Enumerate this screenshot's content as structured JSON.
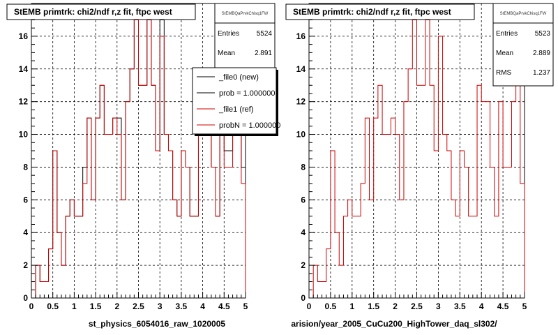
{
  "footer_text": "",
  "chart_data": [
    {
      "type": "histogram",
      "title": "StEMB primtrk: chi2/ndf r,z fit, ftpc west",
      "xlabel": "st_physics_6054016_raw_1020005",
      "ylabel": "",
      "xlim": [
        0,
        5
      ],
      "ylim": [
        0,
        18
      ],
      "x_ticks": [
        "0",
        "0.5",
        "1",
        "1.5",
        "2",
        "2.5",
        "3",
        "3.5",
        "4",
        "4.5",
        "5"
      ],
      "y_ticks": [
        "0",
        "2",
        "4",
        "6",
        "8",
        "10",
        "12",
        "14",
        "16"
      ],
      "grid": true,
      "bin_edges_start": 0,
      "bin_width": 0.1,
      "series": [
        {
          "name": "_file0 (new)",
          "color": "#000000",
          "values": [
            0,
            2,
            1,
            1,
            3,
            9,
            4,
            2,
            5,
            6,
            5,
            5,
            8,
            11,
            6,
            11,
            13,
            10,
            10,
            11,
            11,
            6,
            12,
            14,
            17,
            13,
            13,
            17,
            13,
            9,
            17,
            10,
            9,
            6,
            5,
            9,
            8,
            5,
            5,
            13,
            13,
            12,
            8,
            5,
            12,
            9,
            9,
            12,
            15,
            8
          ]
        },
        {
          "name": "_file1 (ref)",
          "color": "#cc0000",
          "values": [
            0,
            2,
            1,
            1,
            3,
            9,
            4,
            2,
            5,
            6,
            5,
            5,
            7,
            11,
            6,
            11,
            13,
            10,
            10,
            11,
            10,
            6,
            12,
            14,
            17,
            13,
            13,
            17,
            13,
            9,
            16,
            10,
            9,
            6,
            5,
            9,
            8,
            5,
            5,
            13,
            12,
            12,
            8,
            5,
            12,
            8,
            8,
            12,
            15,
            7
          ]
        }
      ],
      "stats": {
        "header": "StEMBQaPrvkChisq1FW",
        "entries_label": "Entries",
        "entries": "5524",
        "mean_label": "Mean",
        "mean": "2.891"
      },
      "legend": {
        "placement": "top-right",
        "entries": [
          {
            "label": "_file0 (new)",
            "color": "#000000"
          },
          {
            "label": "prob = 1.000000",
            "color": "#000000"
          },
          {
            "label": "_file1 (ref)",
            "color": "#cc0000"
          },
          {
            "label": "probN = 1.000000",
            "color": "#cc0000"
          }
        ]
      }
    },
    {
      "type": "histogram",
      "title": "StEMB primtrk: chi2/ndf r,z fit, ftpc west",
      "xlabel": "arision/year_2005_CuCu200_HighTower_daq_sl302/",
      "ylabel": "",
      "xlim": [
        0,
        5
      ],
      "ylim": [
        0,
        18
      ],
      "x_ticks": [
        "0",
        "0.5",
        "1",
        "1.5",
        "2",
        "2.5",
        "3",
        "3.5",
        "4",
        "4.5",
        "5"
      ],
      "y_ticks": [
        "0",
        "2",
        "4",
        "6",
        "8",
        "10",
        "12",
        "14",
        "16"
      ],
      "grid": true,
      "bin_edges_start": 0,
      "bin_width": 0.1,
      "series": [
        {
          "name": "",
          "color": "#cc0000",
          "values": [
            0,
            2,
            1,
            1,
            3,
            9,
            4,
            2,
            5,
            6,
            5,
            5,
            7,
            11,
            6,
            11,
            13,
            10,
            10,
            11,
            10,
            6,
            12,
            14,
            17,
            13,
            13,
            17,
            13,
            9,
            16,
            10,
            9,
            6,
            5,
            9,
            8,
            5,
            5,
            13,
            12,
            12,
            8,
            5,
            12,
            8,
            8,
            12,
            15,
            7
          ]
        }
      ],
      "stats": {
        "header": "StEMBQaPrvkChisq1FW",
        "entries_label": "Entries",
        "entries": "5523",
        "mean_label": "Mean",
        "mean": "2.889",
        "rms_label": "RMS",
        "rms": "1.237"
      }
    }
  ]
}
